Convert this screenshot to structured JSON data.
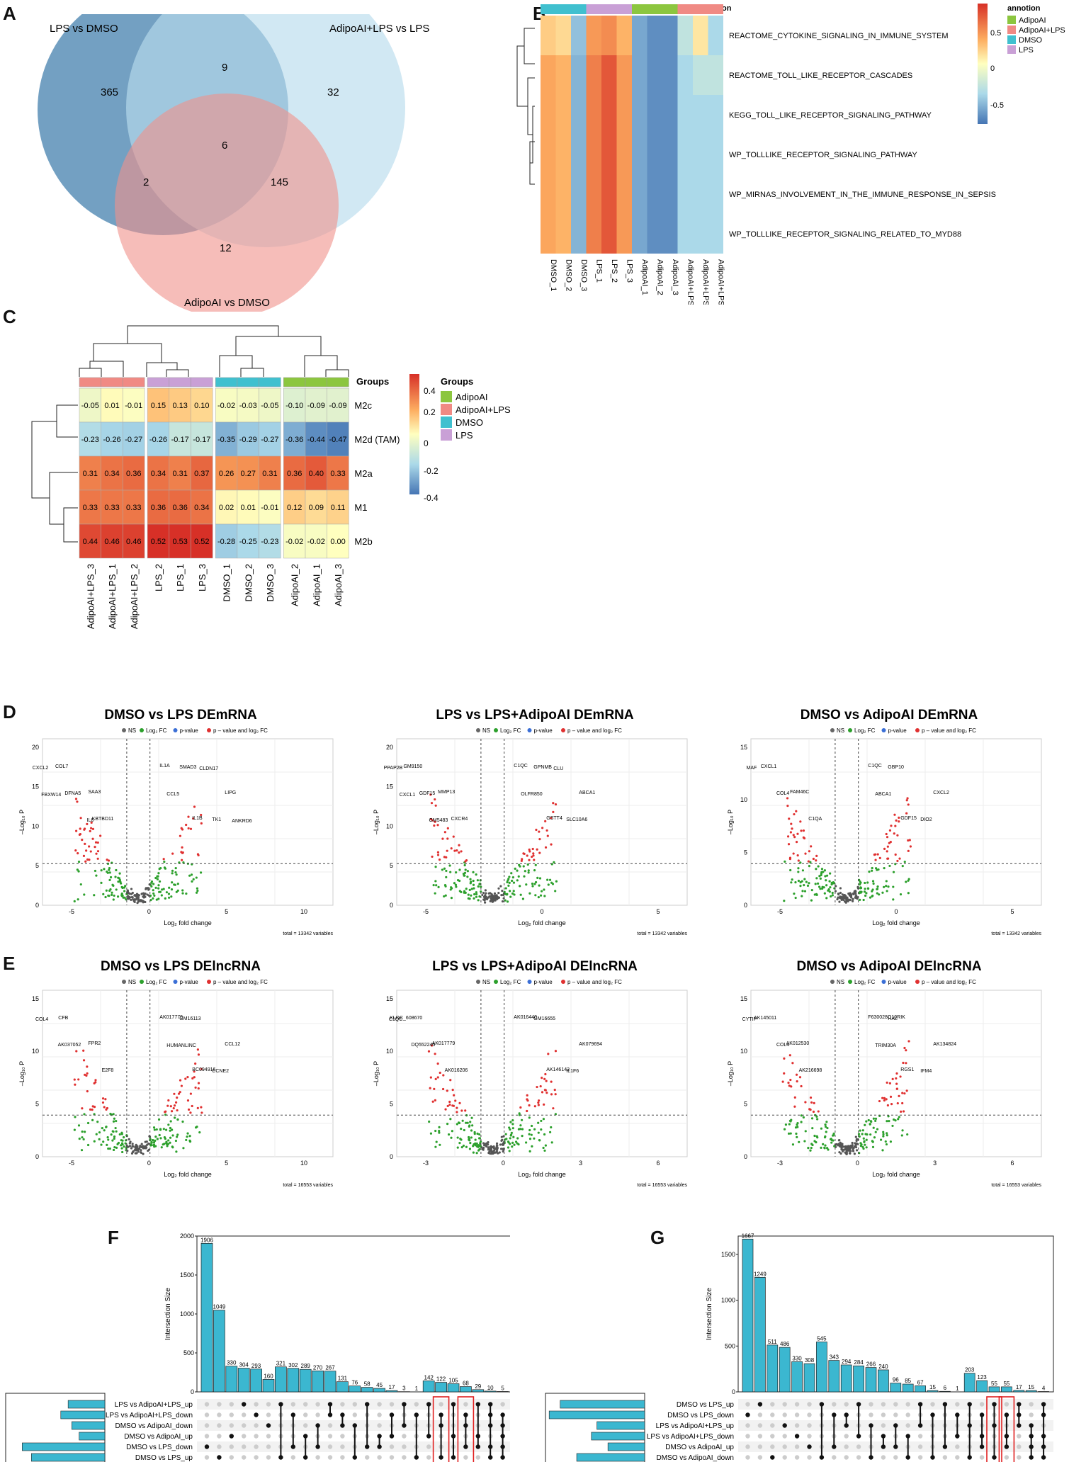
{
  "panels": {
    "a": "A",
    "b": "B",
    "c": "C",
    "d": "D",
    "e": "E",
    "f": "F",
    "g": "G"
  },
  "venn": {
    "sets": [
      "LPS vs DMSO",
      "AdipoAI+LPS vs LPS",
      "AdipoAI vs DMSO"
    ],
    "counts": {
      "only_lps": "365",
      "lps_adipolps": "9",
      "only_adipolps": "32",
      "all": "6",
      "lps_adipo": "2",
      "adipolps_adipo": "145",
      "only_adipo": "12"
    },
    "colors": {
      "lps": "#5b8fb7",
      "adipolps": "#b9dced",
      "adipo": "#f0918a"
    }
  },
  "heatmap_b": {
    "annot_title": "annotion",
    "legend_title": "annotion",
    "legend": [
      "AdipoAI",
      "AdipoAI+LPS",
      "DMSO",
      "LPS"
    ],
    "legend_colors": [
      "#8cc63f",
      "#f08a84",
      "#40c0cf",
      "#c9a0d6"
    ],
    "scale_ticks": [
      "0.5",
      "0",
      "-0.5"
    ],
    "rows": [
      "REACTOME_CYTOKINE_SIGNALING_IN_IMMUNE_SYSTEM",
      "REACTOME_TOLL_LIKE_RECEPTOR_CASCADES",
      "KEGG_TOLL_LIKE_RECEPTOR_SIGNALING_PATHWAY",
      "WP_TOLLLIKE_RECEPTOR_SIGNALING_PATHWAY",
      "WP_MIRNAS_INVOLVEMENT_IN_THE_IMMUNE_RESPONSE_IN_SEPSIS",
      "WP_TOLLLIKE_RECEPTOR_SIGNALING_RELATED_TO_MYD88"
    ],
    "cols": [
      "DMSO_1",
      "DMSO_2",
      "DMSO_3",
      "LPS_1",
      "LPS_2",
      "LPS_3",
      "AdipoAI_1",
      "AdipoAI_2",
      "AdipoAI_3",
      "AdipoAI+LPS_1",
      "AdipoAI+LPS_2",
      "AdipoAI+LPS_3"
    ],
    "col_groups": [
      "DMSO",
      "DMSO",
      "DMSO",
      "LPS",
      "LPS",
      "LPS",
      "AdipoAI",
      "AdipoAI",
      "AdipoAI",
      "AdipoAI+LPS",
      "AdipoAI+LPS",
      "AdipoAI+LPS"
    ],
    "values": [
      [
        0.2,
        0.15,
        -0.5,
        0.4,
        0.45,
        0.3,
        -0.6,
        -0.7,
        -0.7,
        -0.3,
        0.1,
        -0.4
      ],
      [
        0.35,
        0.3,
        -0.55,
        0.5,
        0.65,
        0.4,
        -0.6,
        -0.7,
        -0.7,
        -0.4,
        -0.3,
        -0.3
      ],
      [
        0.35,
        0.3,
        -0.55,
        0.5,
        0.65,
        0.4,
        -0.6,
        -0.7,
        -0.7,
        -0.4,
        -0.4,
        -0.4
      ],
      [
        0.35,
        0.3,
        -0.55,
        0.5,
        0.65,
        0.4,
        -0.6,
        -0.7,
        -0.7,
        -0.4,
        -0.4,
        -0.4
      ],
      [
        0.35,
        0.3,
        -0.55,
        0.5,
        0.65,
        0.4,
        -0.6,
        -0.7,
        -0.7,
        -0.4,
        -0.4,
        -0.4
      ],
      [
        0.35,
        0.3,
        -0.55,
        0.5,
        0.65,
        0.4,
        -0.6,
        -0.7,
        -0.7,
        -0.4,
        -0.4,
        -0.4
      ]
    ]
  },
  "heatmap_c": {
    "groups_title": "Groups",
    "legend_title": "Groups",
    "legend": [
      "AdipoAI",
      "AdipoAI+LPS",
      "DMSO",
      "LPS"
    ],
    "legend_colors": [
      "#8cc63f",
      "#f08a84",
      "#40c0cf",
      "#c9a0d6"
    ],
    "scale_ticks": [
      "0.4",
      "0.2",
      "0",
      "-0.2",
      "-0.4"
    ],
    "rows": [
      "M2c",
      "M2d (TAM)",
      "M2a",
      "M1",
      "M2b"
    ],
    "cols": [
      "AdipoAI+LPS_3",
      "AdipoAI+LPS_1",
      "AdipoAI+LPS_2",
      "LPS_2",
      "LPS_1",
      "LPS_3",
      "DMSO_1",
      "DMSO_2",
      "DMSO_3",
      "AdipoAI_2",
      "AdipoAI_1",
      "AdipoAI_3"
    ],
    "col_groups": [
      "AdipoAI+LPS",
      "AdipoAI+LPS",
      "AdipoAI+LPS",
      "LPS",
      "LPS",
      "LPS",
      "DMSO",
      "DMSO",
      "DMSO",
      "AdipoAI",
      "AdipoAI",
      "AdipoAI"
    ],
    "values": [
      [
        "-0.05",
        "0.01",
        "-0.01",
        "0.15",
        "0.13",
        "0.10",
        "-0.02",
        "-0.03",
        "-0.05",
        "-0.10",
        "-0.09",
        "-0.09"
      ],
      [
        "-0.23",
        "-0.26",
        "-0.27",
        "-0.26",
        "-0.17",
        "-0.17",
        "-0.35",
        "-0.29",
        "-0.27",
        "-0.36",
        "-0.44",
        "-0.47"
      ],
      [
        "0.31",
        "0.34",
        "0.36",
        "0.34",
        "0.31",
        "0.37",
        "0.26",
        "0.27",
        "0.31",
        "0.36",
        "0.40",
        "0.33"
      ],
      [
        "0.33",
        "0.33",
        "0.33",
        "0.36",
        "0.36",
        "0.34",
        "0.02",
        "0.01",
        "-0.01",
        "0.12",
        "0.09",
        "0.11"
      ],
      [
        "0.44",
        "0.46",
        "0.46",
        "0.52",
        "0.53",
        "0.52",
        "-0.28",
        "-0.25",
        "-0.23",
        "-0.02",
        "-0.02",
        "0.00"
      ]
    ]
  },
  "volcano_legend": {
    "ns": "NS",
    "fc": "Log₂ FC",
    "p": "p-value",
    "both": "p – value and log₂ FC"
  },
  "volcano_axes": {
    "x": "Log₂ fold change",
    "y": "–Log₁₀ P"
  },
  "volcanoes": [
    {
      "title": "DMSO vs LPS DEmRNA",
      "total": "total = 13342 variables",
      "xticks": [
        "-5",
        "0",
        "5",
        "10"
      ],
      "yticks": [
        "0",
        "5",
        "10",
        "15",
        "20"
      ],
      "labels": [
        "IL1A",
        "SAA3",
        "IL1B",
        "COL7",
        "LIPG",
        "KBTBD11",
        "SMAD3",
        "DFNA5",
        "TK1",
        "CXCL2",
        "CCL5",
        "IL6",
        "CLDN17",
        "FBXW14",
        "ANKRD6"
      ]
    },
    {
      "title": "LPS vs LPS+AdipoAI DEmRNA",
      "total": "total = 13342 variables",
      "xticks": [
        "-5",
        "0",
        "5"
      ],
      "yticks": [
        "0",
        "5",
        "10",
        "15",
        "20"
      ],
      "labels": [
        "C1QC",
        "MMP13",
        "GSTT4",
        "GM9150",
        "ABCA1",
        "CXCR4",
        "GPNMB",
        "GDF15",
        "SLC10A6",
        "PPAP2B",
        "OLFR850",
        "GM5483",
        "CLU",
        "CXCL1"
      ]
    },
    {
      "title": "DMSO vs AdipoAI DEmRNA",
      "total": "total = 13342 variables",
      "xticks": [
        "-5",
        "0",
        "5"
      ],
      "yticks": [
        "0",
        "5",
        "10",
        "15"
      ],
      "labels": [
        "C1QC",
        "FAM46C",
        "GDF15",
        "CXCL1",
        "CXCL2",
        "C1QA",
        "GBP10",
        "COL4",
        "DIO2",
        "MAF",
        "ABCA1"
      ]
    },
    {
      "title": "DMSO vs LPS DElncRNA",
      "total": "total = 16553 variables",
      "xticks": [
        "-5",
        "0",
        "5",
        "10"
      ],
      "yticks": [
        "0",
        "5",
        "10",
        "15"
      ],
      "labels": [
        "AK017779",
        "FPR2",
        "BC094916",
        "CFB",
        "CCL12",
        "E2F8",
        "GM16113",
        "AK037052",
        "CCNE2",
        "COL4",
        "HUMANLINC"
      ]
    },
    {
      "title": "LPS vs LPS+AdipoAI DElncRNA",
      "total": "total = 16553 variables",
      "xticks": [
        "-3",
        "0",
        "3",
        "6"
      ],
      "yticks": [
        "0",
        "5",
        "10",
        "15"
      ],
      "labels": [
        "AK016440",
        "AK017779",
        "AK146143",
        "XLOC_608670",
        "AK079694",
        "AK016206",
        "GM16655",
        "DQ552245",
        "IL1F6",
        "C1QC"
      ]
    },
    {
      "title": "DMSO vs AdipoAI DElncRNA",
      "total": "total = 16553 variables",
      "xticks": [
        "-3",
        "0",
        "3",
        "6"
      ],
      "yticks": [
        "0",
        "5",
        "10",
        "15"
      ],
      "labels": [
        "F630028O10RIK",
        "AK012530",
        "RGS1",
        "AK145011",
        "AK134824",
        "AK216698",
        "HAL",
        "COL4",
        "IFM4",
        "CYTIP",
        "TRIM30A"
      ]
    }
  ],
  "upset_f": {
    "ylabel": "Intersection Size",
    "xlabel": "Set Size",
    "yticks": [
      "0",
      "500",
      "1000",
      "1500",
      "2000"
    ],
    "set_size_ticks": [
      "2000",
      "1000",
      "0"
    ],
    "sets": [
      "LPS vs AdipoAI+LPS_up",
      "LPS vs AdipoAI+LPS_down",
      "DMSO vs AdipoAI_down",
      "DMSO vs AdipoAI_up",
      "DMSO vs LPS_down",
      "DMSO vs LPS_up"
    ],
    "set_sizes": [
      1000,
      1200,
      900,
      700,
      2250,
      2000
    ],
    "bars": [
      1906,
      1049,
      330,
      304,
      293,
      160,
      321,
      302,
      289,
      270,
      267,
      131,
      76,
      58,
      45,
      17,
      3,
      1,
      142,
      122,
      105,
      68,
      29,
      10,
      5
    ],
    "matrix": [
      [
        4
      ],
      [
        5
      ],
      [
        3
      ],
      [
        0
      ],
      [
        1
      ],
      [
        2
      ],
      [
        0,
        5
      ],
      [
        1,
        4
      ],
      [
        3,
        5
      ],
      [
        2,
        4
      ],
      [
        0,
        1
      ],
      [
        1,
        2
      ],
      [
        2,
        5
      ],
      [
        0,
        4
      ],
      [
        3,
        4
      ],
      [
        1,
        3
      ],
      [
        0,
        2
      ],
      [
        1,
        5
      ],
      [
        0,
        3
      ],
      [
        2,
        5,
        1
      ],
      [
        0,
        3,
        5
      ],
      [
        1,
        2,
        4
      ],
      [
        3,
        4,
        0
      ],
      [
        0,
        1,
        2,
        4,
        5
      ],
      [
        1,
        2,
        3,
        4,
        5
      ]
    ]
  },
  "upset_g": {
    "ylabel": "Intersection Size",
    "xlabel": "Set Size",
    "yticks": [
      "0",
      "500",
      "1000",
      "1500"
    ],
    "set_size_ticks": [
      "2000",
      "1000",
      "0"
    ],
    "sets": [
      "DMSO vs LPS_up",
      "DMSO vs LPS_down",
      "LPS vs AdipoAI+LPS_up",
      "LPS vs AdipoAI+LPS_down",
      "DMSO vs AdipoAI_up",
      "DMSO vs AdipoAI_down"
    ],
    "set_sizes": [
      2300,
      2600,
      1300,
      1450,
      1000,
      1850
    ],
    "bars": [
      1667,
      1249,
      511,
      486,
      330,
      308,
      545,
      343,
      294,
      284,
      266,
      240,
      96,
      85,
      67,
      15,
      6,
      1,
      203,
      123,
      55,
      55,
      17,
      15,
      4
    ],
    "matrix": [
      [
        1
      ],
      [
        0
      ],
      [
        5
      ],
      [
        2
      ],
      [
        3
      ],
      [
        4
      ],
      [
        0,
        5
      ],
      [
        1,
        4
      ],
      [
        1,
        2
      ],
      [
        0,
        3
      ],
      [
        2,
        5
      ],
      [
        3,
        4
      ],
      [
        2,
        4
      ],
      [
        3,
        5
      ],
      [
        0,
        2
      ],
      [
        1,
        5
      ],
      [
        0,
        4
      ],
      [
        1,
        3
      ],
      [
        0,
        5,
        2
      ],
      [
        1,
        4,
        3
      ],
      [
        0,
        2,
        5
      ],
      [
        1,
        3,
        4
      ],
      [
        0,
        1,
        2
      ],
      [
        2,
        3,
        4,
        5
      ],
      [
        0,
        1,
        3,
        4,
        5
      ]
    ]
  }
}
